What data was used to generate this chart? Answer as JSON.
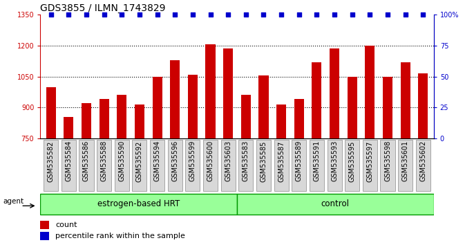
{
  "title": "GDS3855 / ILMN_1743829",
  "categories": [
    "GSM535582",
    "GSM535584",
    "GSM535586",
    "GSM535588",
    "GSM535590",
    "GSM535592",
    "GSM535594",
    "GSM535596",
    "GSM535599",
    "GSM535600",
    "GSM535603",
    "GSM535583",
    "GSM535585",
    "GSM535587",
    "GSM535589",
    "GSM535591",
    "GSM535593",
    "GSM535595",
    "GSM535597",
    "GSM535598",
    "GSM535601",
    "GSM535602"
  ],
  "bar_values": [
    1000,
    855,
    920,
    940,
    960,
    915,
    1050,
    1130,
    1060,
    1205,
    1185,
    960,
    1055,
    915,
    940,
    1120,
    1185,
    1050,
    1200,
    1050,
    1120,
    1065
  ],
  "bar_color": "#cc0000",
  "dot_color": "#0000cc",
  "ylim_left": [
    750,
    1350
  ],
  "ylim_right": [
    0,
    100
  ],
  "yticks_left": [
    750,
    900,
    1050,
    1200,
    1350
  ],
  "yticks_right": [
    0,
    25,
    50,
    75,
    100
  ],
  "ytick_labels_right": [
    "0",
    "25",
    "50",
    "75",
    "100%"
  ],
  "grid_lines": [
    900,
    1050,
    1200
  ],
  "group1_label": "estrogen-based HRT",
  "group2_label": "control",
  "group1_count": 11,
  "legend_count_label": "count",
  "legend_percentile_label": "percentile rank within the sample",
  "agent_label": "agent",
  "group_fill_color": "#99ff99",
  "group_border_color": "#009900",
  "title_fontsize": 10,
  "tick_fontsize": 7,
  "group_fontsize": 8.5,
  "bar_width": 0.55,
  "dot_size": 15,
  "left_color": "#cc0000",
  "right_color": "#0000cc"
}
